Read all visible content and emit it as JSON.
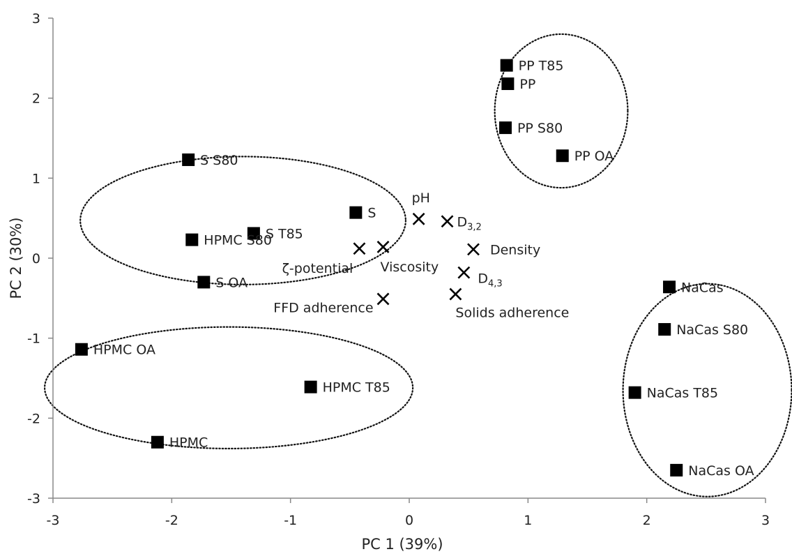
{
  "chart_data": {
    "type": "scatter",
    "xlabel": "PC 1 (39%)",
    "ylabel": "PC 2 (30%)",
    "xlim": [
      -3,
      3
    ],
    "ylim": [
      -3,
      3
    ],
    "xticks": [
      "-3",
      "-2",
      "-1",
      "0",
      "1",
      "2",
      "3"
    ],
    "yticks": [
      "3",
      "2",
      "1",
      "0",
      "-1",
      "-2",
      "-3"
    ],
    "grid": false,
    "scores": [
      {
        "label": "PP T85",
        "x": 0.82,
        "y": 2.41
      },
      {
        "label": "PP",
        "x": 0.83,
        "y": 2.18
      },
      {
        "label": "PP S80",
        "x": 0.81,
        "y": 1.63
      },
      {
        "label": "PP OA",
        "x": 1.29,
        "y": 1.28
      },
      {
        "label": "S S80",
        "x": -1.86,
        "y": 1.23
      },
      {
        "label": "S",
        "x": -0.45,
        "y": 0.57
      },
      {
        "label": "S T85",
        "x": -1.31,
        "y": 0.31
      },
      {
        "label": "HPMC S80",
        "x": -1.83,
        "y": 0.23
      },
      {
        "label": "S OA",
        "x": -1.73,
        "y": -0.3
      },
      {
        "label": "HPMC OA",
        "x": -2.76,
        "y": -1.14
      },
      {
        "label": "HPMC T85",
        "x": -0.83,
        "y": -1.61
      },
      {
        "label": "HPMC",
        "x": -2.12,
        "y": -2.3
      },
      {
        "label": "NaCas",
        "x": 2.19,
        "y": -0.36
      },
      {
        "label": "NaCas S80",
        "x": 2.15,
        "y": -0.89
      },
      {
        "label": "NaCas T85",
        "x": 1.9,
        "y": -1.68
      },
      {
        "label": "NaCas OA",
        "x": 2.25,
        "y": -2.65
      }
    ],
    "loadings": [
      {
        "label": "pH",
        "x": 0.08,
        "y": 0.49
      },
      {
        "label": "D",
        "sub": "3,2",
        "x": 0.32,
        "y": 0.46
      },
      {
        "label": "Density",
        "x": 0.54,
        "y": 0.11
      },
      {
        "label": "ζ-potential",
        "x": -0.42,
        "y": 0.12
      },
      {
        "label": "Viscosity",
        "x": -0.22,
        "y": 0.14
      },
      {
        "label": "D",
        "sub": "4,3",
        "x": 0.46,
        "y": -0.18
      },
      {
        "label": "Solids adherence",
        "x": 0.39,
        "y": -0.45
      },
      {
        "label": "FFD adherence",
        "x": -0.22,
        "y": -0.51
      }
    ],
    "clusters": [
      {
        "cx": 1.28,
        "cy": 1.84,
        "rx": 0.56,
        "ry": 0.96
      },
      {
        "cx": -1.4,
        "cy": 0.47,
        "rx": 1.37,
        "ry": 0.8
      },
      {
        "cx": -1.52,
        "cy": -1.62,
        "rx": 1.55,
        "ry": 0.76
      },
      {
        "cx": 2.51,
        "cy": -1.65,
        "rx": 0.71,
        "ry": 1.33
      }
    ]
  }
}
